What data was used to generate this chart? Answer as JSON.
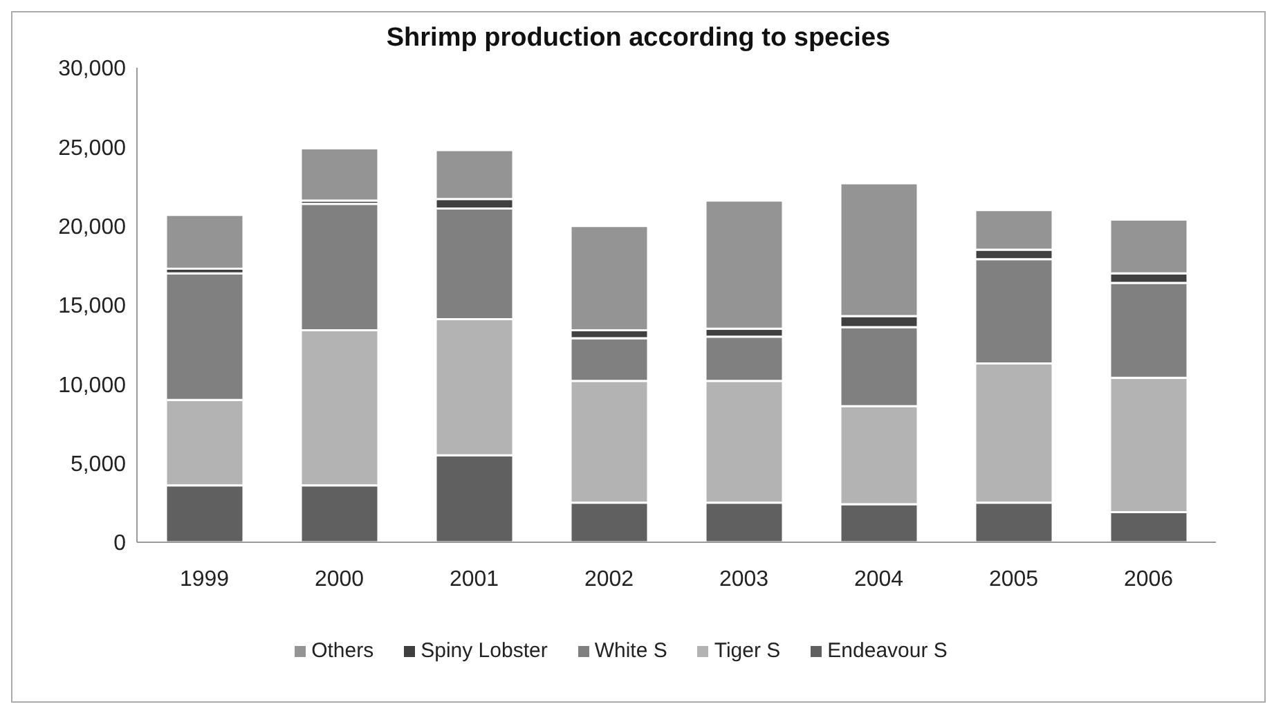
{
  "chart_data": {
    "type": "bar",
    "title": "Shrimp production according to species",
    "stacked": true,
    "categories": [
      "1999",
      "2000",
      "2001",
      "2002",
      "2003",
      "2004",
      "2005",
      "2006"
    ],
    "series": [
      {
        "name": "Endeavour S",
        "color": "#606060",
        "values": [
          3600,
          3600,
          5500,
          2500,
          2500,
          2400,
          2500,
          1900
        ]
      },
      {
        "name": "Tiger S",
        "color": "#b3b3b3",
        "values": [
          5400,
          9800,
          8600,
          7700,
          7700,
          6200,
          8800,
          8500
        ]
      },
      {
        "name": "White S",
        "color": "#808080",
        "values": [
          8000,
          8000,
          7000,
          2700,
          2800,
          5000,
          6600,
          6000
        ]
      },
      {
        "name": "Spiny Lobster",
        "color": "#404040",
        "values": [
          300,
          200,
          600,
          500,
          500,
          700,
          600,
          600
        ]
      },
      {
        "name": "Others",
        "color": "#949494",
        "values": [
          3400,
          3300,
          3100,
          6600,
          8100,
          8400,
          2500,
          3400
        ]
      }
    ],
    "ylim": [
      0,
      30000
    ],
    "yticks": [
      0,
      {
        "value": 5000,
        "label": "5,000"
      },
      {
        "value": 10000,
        "label": "10,000"
      },
      {
        "value": 15000,
        "label": "15,000"
      },
      {
        "value": 20000,
        "label": "20,000"
      },
      {
        "value": 25000,
        "label": "25,000"
      },
      {
        "value": 30000,
        "label": "30,000"
      }
    ],
    "grid": false,
    "legend": "bottom"
  }
}
